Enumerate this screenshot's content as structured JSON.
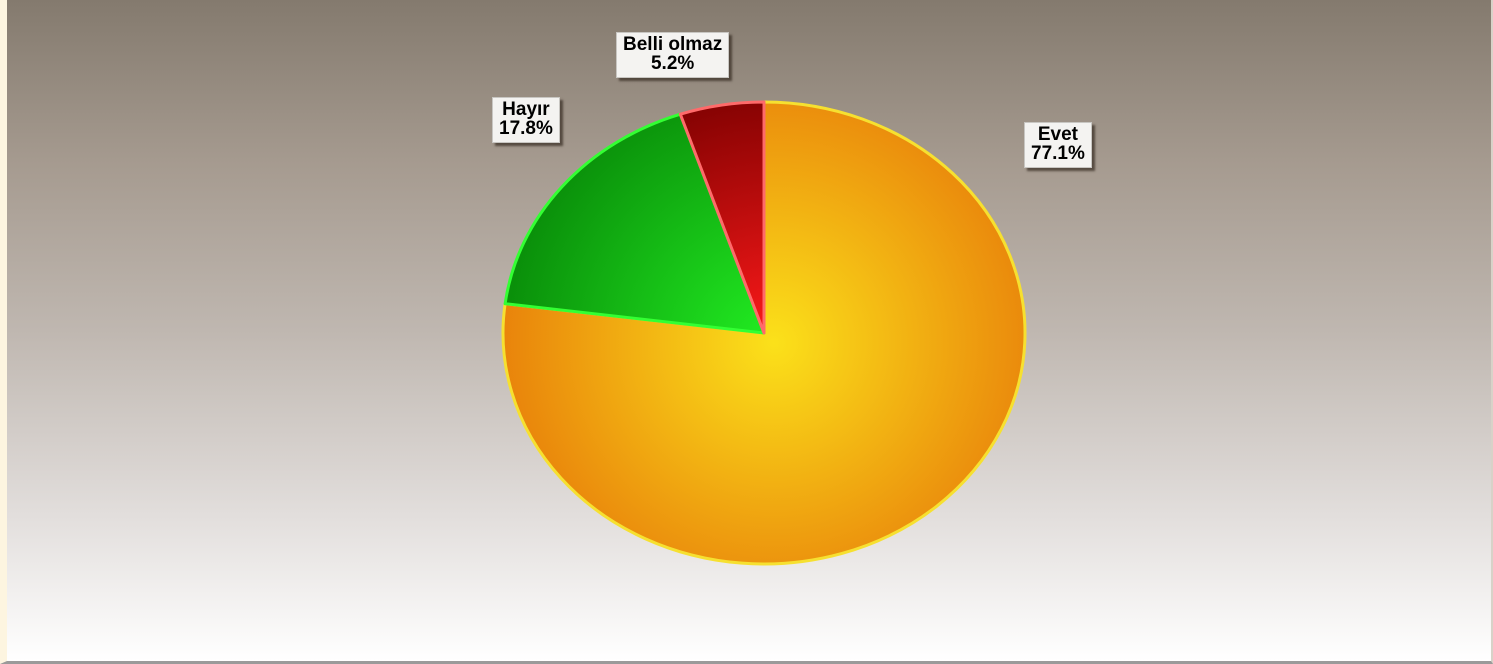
{
  "chart_data": {
    "type": "pie",
    "title": "",
    "slices": [
      {
        "label": "Evet",
        "value": 77.1,
        "value_label": "77.1%",
        "color": "#e9840b",
        "highlight": "#fbe11a"
      },
      {
        "label": "Hayır",
        "value": 17.8,
        "value_label": "17.8%",
        "color": "#0a8f0a",
        "highlight": "#22ee22"
      },
      {
        "label": "Belli olmaz",
        "value": 5.2,
        "value_label": "5.2%",
        "color": "#7a0000",
        "highlight": "#ff1a1a"
      }
    ],
    "start_angle_deg": 0,
    "direction": "clockwise",
    "legend": "none"
  }
}
